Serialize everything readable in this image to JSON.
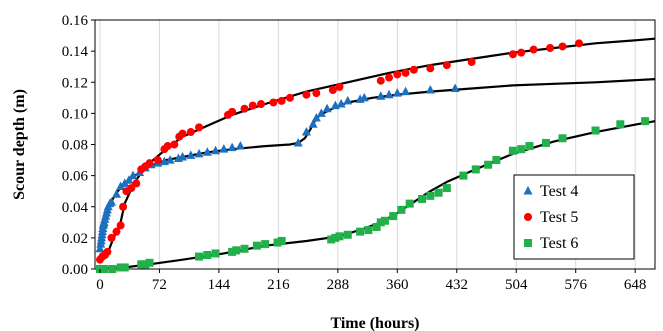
{
  "chart_data": {
    "type": "scatter",
    "xlabel": "Time (hours)",
    "ylabel": "Scour depth (m)",
    "xlim": [
      -6,
      672
    ],
    "ylim": [
      0,
      0.16
    ],
    "xticks": [
      0,
      72,
      144,
      216,
      288,
      360,
      432,
      504,
      576,
      648
    ],
    "yticks": [
      0.0,
      0.02,
      0.04,
      0.06,
      0.08,
      0.1,
      0.12,
      0.14,
      0.16
    ],
    "xtick_labels": [
      "0",
      "72",
      "144",
      "216",
      "288",
      "360",
      "432",
      "504",
      "576",
      "648"
    ],
    "ytick_labels": [
      "0.00",
      "0.02",
      "0.04",
      "0.06",
      "0.08",
      "0.10",
      "0.12",
      "0.14",
      "0.16"
    ],
    "grid": "vertical",
    "legend_position": "bottom-right",
    "series": [
      {
        "name": "Test 4",
        "marker": "triangle",
        "color": "#1f6fc0",
        "x": [
          0,
          1,
          1.5,
          2,
          2.5,
          3,
          3.5,
          4,
          4.5,
          5,
          6,
          7,
          8,
          9,
          10,
          12,
          14,
          20,
          25,
          30,
          35,
          40,
          48,
          55,
          62,
          70,
          78,
          85,
          95,
          100,
          110,
          120,
          130,
          140,
          150,
          160,
          170,
          240,
          250,
          258,
          262,
          268,
          275,
          285,
          292,
          300,
          315,
          320,
          340,
          350,
          360,
          370,
          400,
          430
        ],
        "y": [
          0.013,
          0.016,
          0.018,
          0.02,
          0.022,
          0.024,
          0.026,
          0.028,
          0.029,
          0.03,
          0.032,
          0.034,
          0.036,
          0.038,
          0.04,
          0.042,
          0.043,
          0.048,
          0.053,
          0.055,
          0.057,
          0.06,
          0.062,
          0.065,
          0.067,
          0.068,
          0.069,
          0.07,
          0.071,
          0.072,
          0.073,
          0.074,
          0.075,
          0.076,
          0.077,
          0.078,
          0.079,
          0.081,
          0.088,
          0.093,
          0.097,
          0.1,
          0.103,
          0.105,
          0.106,
          0.108,
          0.109,
          0.11,
          0.111,
          0.112,
          0.113,
          0.114,
          0.115,
          0.116
        ]
      },
      {
        "name": "Test 5",
        "marker": "circle",
        "color": "#ff0000",
        "x": [
          0,
          3,
          6,
          9,
          14,
          20,
          25,
          28,
          32,
          38,
          44,
          50,
          55,
          60,
          70,
          78,
          82,
          90,
          96,
          100,
          110,
          120,
          155,
          160,
          175,
          185,
          195,
          210,
          220,
          230,
          250,
          262,
          282,
          290,
          340,
          350,
          360,
          370,
          380,
          400,
          420,
          450,
          500,
          510,
          525,
          545,
          560,
          580
        ],
        "y": [
          0.006,
          0.008,
          0.009,
          0.011,
          0.02,
          0.024,
          0.028,
          0.04,
          0.05,
          0.052,
          0.055,
          0.064,
          0.066,
          0.068,
          0.07,
          0.077,
          0.079,
          0.08,
          0.085,
          0.087,
          0.088,
          0.091,
          0.099,
          0.101,
          0.103,
          0.105,
          0.106,
          0.107,
          0.108,
          0.11,
          0.112,
          0.113,
          0.115,
          0.117,
          0.121,
          0.123,
          0.125,
          0.126,
          0.128,
          0.129,
          0.131,
          0.133,
          0.138,
          0.139,
          0.141,
          0.142,
          0.143,
          0.145
        ]
      },
      {
        "name": "Test 6",
        "marker": "square",
        "color": "#22b04b",
        "x": [
          0,
          5,
          15,
          25,
          30,
          50,
          55,
          60,
          120,
          130,
          140,
          160,
          165,
          175,
          190,
          200,
          215,
          220,
          280,
          285,
          290,
          300,
          315,
          325,
          335,
          340,
          345,
          355,
          365,
          375,
          390,
          400,
          410,
          420,
          440,
          455,
          470,
          480,
          500,
          510,
          520,
          540,
          560,
          600,
          630,
          660
        ],
        "y": [
          0.0,
          0.0,
          0.0,
          0.001,
          0.001,
          0.003,
          0.003,
          0.004,
          0.008,
          0.009,
          0.01,
          0.011,
          0.012,
          0.013,
          0.015,
          0.016,
          0.017,
          0.018,
          0.019,
          0.02,
          0.021,
          0.022,
          0.024,
          0.025,
          0.027,
          0.03,
          0.031,
          0.034,
          0.038,
          0.042,
          0.045,
          0.047,
          0.049,
          0.052,
          0.06,
          0.064,
          0.067,
          0.07,
          0.076,
          0.077,
          0.079,
          0.081,
          0.084,
          0.089,
          0.093,
          0.095
        ]
      }
    ],
    "fit_curves": [
      {
        "series": "Test 4",
        "color": "#000000",
        "x": [
          0,
          5,
          10,
          20,
          30,
          40,
          50,
          60,
          80,
          100,
          130,
          160,
          200,
          230,
          240,
          248,
          255,
          262,
          270,
          285,
          300,
          330,
          360,
          400,
          450,
          500,
          550,
          600,
          672
        ],
        "y": [
          0.012,
          0.03,
          0.04,
          0.049,
          0.055,
          0.059,
          0.063,
          0.066,
          0.07,
          0.072,
          0.075,
          0.077,
          0.079,
          0.08,
          0.081,
          0.084,
          0.09,
          0.097,
          0.1,
          0.104,
          0.107,
          0.11,
          0.112,
          0.114,
          0.116,
          0.118,
          0.119,
          0.12,
          0.122
        ]
      },
      {
        "series": "Test 5",
        "color": "#000000",
        "x": [
          0,
          10,
          15,
          20,
          25,
          30,
          40,
          50,
          60,
          80,
          100,
          130,
          160,
          200,
          250,
          300,
          350,
          400,
          450,
          500,
          550,
          600,
          650,
          672
        ],
        "y": [
          0.006,
          0.011,
          0.018,
          0.024,
          0.03,
          0.042,
          0.054,
          0.062,
          0.068,
          0.077,
          0.085,
          0.092,
          0.099,
          0.106,
          0.114,
          0.12,
          0.126,
          0.131,
          0.135,
          0.139,
          0.142,
          0.145,
          0.147,
          0.148
        ]
      },
      {
        "series": "Test 6",
        "color": "#000000",
        "x": [
          0,
          30,
          60,
          100,
          150,
          200,
          250,
          290,
          320,
          340,
          360,
          380,
          400,
          420,
          450,
          500,
          550,
          600,
          650,
          672
        ],
        "y": [
          0.0,
          0.001,
          0.003,
          0.006,
          0.01,
          0.015,
          0.018,
          0.021,
          0.026,
          0.03,
          0.036,
          0.043,
          0.05,
          0.056,
          0.063,
          0.074,
          0.082,
          0.088,
          0.093,
          0.095
        ]
      }
    ]
  }
}
